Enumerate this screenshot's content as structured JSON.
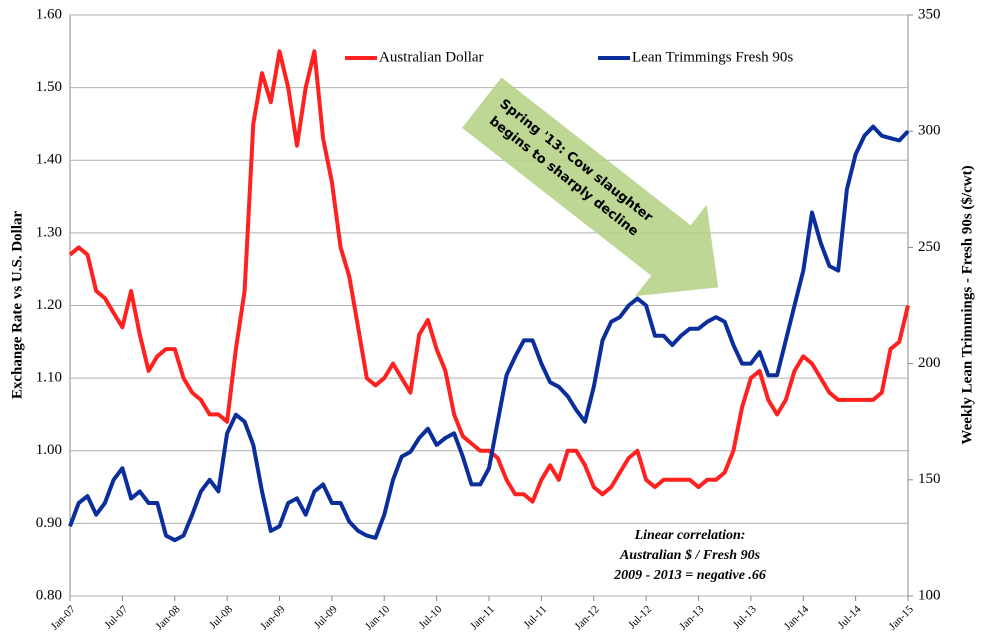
{
  "chart_data": {
    "type": "line",
    "categories": [
      "Jan-07",
      null,
      null,
      null,
      null,
      null,
      "Jul-07",
      null,
      null,
      null,
      null,
      null,
      "Jan-08",
      null,
      null,
      null,
      null,
      null,
      "Jul-08",
      null,
      null,
      null,
      null,
      null,
      "Jan-09",
      null,
      null,
      null,
      null,
      null,
      "Jul-09",
      null,
      null,
      null,
      null,
      null,
      "Jan-10",
      null,
      null,
      null,
      null,
      null,
      "Jul-10",
      null,
      null,
      null,
      null,
      null,
      "Jan-11",
      null,
      null,
      null,
      null,
      null,
      "Jul-11",
      null,
      null,
      null,
      null,
      null,
      "Jan-12",
      null,
      null,
      null,
      null,
      null,
      "Jul-12",
      null,
      null,
      null,
      null,
      null,
      "Jan-13",
      null,
      null,
      null,
      null,
      null,
      "Jul-13",
      null,
      null,
      null,
      null,
      null,
      "Jan-14",
      null,
      null,
      null,
      null,
      null,
      "Jul-14",
      null,
      null,
      null,
      null,
      null,
      "Jan-15"
    ],
    "series": [
      {
        "name": "Australian Dollar",
        "color": "#ff2020",
        "axis": "y",
        "values": [
          1.27,
          1.28,
          1.27,
          1.22,
          1.21,
          1.19,
          1.17,
          1.22,
          1.16,
          1.11,
          1.13,
          1.14,
          1.14,
          1.1,
          1.08,
          1.07,
          1.05,
          1.05,
          1.04,
          1.14,
          1.22,
          1.45,
          1.52,
          1.48,
          1.55,
          1.5,
          1.42,
          1.5,
          1.55,
          1.43,
          1.37,
          1.28,
          1.24,
          1.17,
          1.1,
          1.09,
          1.1,
          1.12,
          1.1,
          1.08,
          1.16,
          1.18,
          1.14,
          1.11,
          1.05,
          1.02,
          1.01,
          1.0,
          1.0,
          0.99,
          0.96,
          0.94,
          0.94,
          0.93,
          0.96,
          0.98,
          0.96,
          1.0,
          1.0,
          0.98,
          0.95,
          0.94,
          0.95,
          0.97,
          0.99,
          1.0,
          0.96,
          0.95,
          0.96,
          0.96,
          0.96,
          0.96,
          0.95,
          0.96,
          0.96,
          0.97,
          1.0,
          1.06,
          1.1,
          1.11,
          1.07,
          1.05,
          1.07,
          1.11,
          1.13,
          1.12,
          1.1,
          1.08,
          1.07,
          1.07,
          1.07,
          1.07,
          1.07,
          1.08,
          1.14,
          1.15,
          1.2
        ]
      },
      {
        "name": "Lean Trimmings Fresh 90s",
        "color": "#0a2e9c",
        "axis": "y2",
        "values": [
          130,
          140,
          143,
          135,
          140,
          150,
          155,
          142,
          145,
          140,
          140,
          126,
          124,
          126,
          135,
          145,
          150,
          145,
          170,
          178,
          175,
          165,
          145,
          128,
          130,
          140,
          142,
          135,
          145,
          148,
          140,
          140,
          132,
          128,
          126,
          125,
          135,
          150,
          160,
          162,
          168,
          172,
          165,
          168,
          170,
          160,
          148,
          148,
          155,
          175,
          195,
          203,
          210,
          210,
          200,
          192,
          190,
          186,
          180,
          175,
          190,
          210,
          218,
          220,
          225,
          228,
          225,
          212,
          212,
          208,
          212,
          215,
          215,
          218,
          220,
          218,
          208,
          200,
          200,
          205,
          195,
          195,
          210,
          225,
          240,
          265,
          252,
          242,
          240,
          275,
          290,
          298,
          302,
          298,
          297,
          296,
          300
        ]
      }
    ],
    "y_label": "Exchange Rate vs U.S. Dollar",
    "y2_label": "Weekly Lean Trimmings - Fresh 90s ($/cwt)",
    "ylim": [
      0.8,
      1.6
    ],
    "yticks": [
      {
        "value": 0.8,
        "label": "0.80"
      },
      {
        "value": 0.9,
        "label": "0.90"
      },
      {
        "value": 1.0,
        "label": "1.00"
      },
      {
        "value": 1.1,
        "label": "1.10"
      },
      {
        "value": 1.2,
        "label": "1.20"
      },
      {
        "value": 1.3,
        "label": "1.30"
      },
      {
        "value": 1.4,
        "label": "1.40"
      },
      {
        "value": 1.5,
        "label": "1.50"
      },
      {
        "value": 1.6,
        "label": "1.60"
      }
    ],
    "y2lim": [
      100,
      350
    ],
    "y2ticks": [
      100,
      150,
      200,
      250,
      300,
      350
    ],
    "grid": true,
    "annotations": [
      "Spring '13:  Cow slaughter",
      "begins to sharply decline"
    ],
    "correlation_note": [
      "Linear correlation:",
      "Australian $ / Fresh 90s",
      "2009 - 2013 = negative .66"
    ]
  }
}
